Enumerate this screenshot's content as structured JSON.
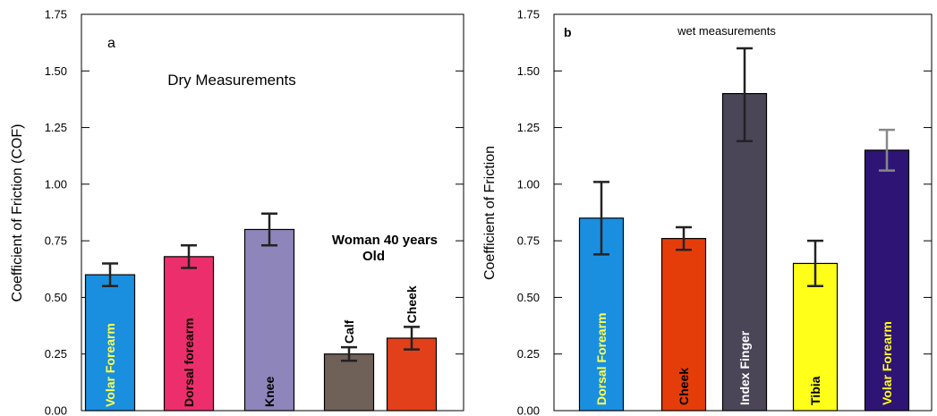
{
  "chart_data": [
    {
      "type": "bar",
      "panel_label": "a",
      "title": "Dry Measurements",
      "annotation": [
        "Woman 40 years",
        "Old"
      ],
      "xlabel": "",
      "ylabel": "Coefficient of Friction (COF)",
      "ylim": [
        0,
        1.75
      ],
      "yticks": [
        "0.00",
        "0.25",
        "0.50",
        "0.75",
        "1.00",
        "1.25",
        "1.50",
        "1.75"
      ],
      "grid": false,
      "categories": [
        "Volar Forearm",
        "Dorsal forearm",
        "Knee",
        "Calf",
        "Cheek"
      ],
      "values": [
        0.6,
        0.68,
        0.8,
        0.25,
        0.32
      ],
      "error_low": [
        0.55,
        0.63,
        0.73,
        0.22,
        0.27
      ],
      "error_high": [
        0.65,
        0.73,
        0.87,
        0.28,
        0.37
      ],
      "colors": [
        "#1a8fe0",
        "#ec2f6c",
        "#8e85ba",
        "#6f6058",
        "#e2401a"
      ],
      "label_colors": [
        "#ffff4d",
        "#000000",
        "#000000",
        "#000000",
        "#000000"
      ],
      "label_inside": [
        true,
        true,
        true,
        false,
        false
      ]
    },
    {
      "type": "bar",
      "panel_label": "b",
      "title": "wet measurements",
      "xlabel": "",
      "ylabel": "Coefficient of Friction",
      "ylim": [
        0,
        1.75
      ],
      "yticks": [
        "0.00",
        "0.25",
        "0.50",
        "0.75",
        "1.00",
        "1.25",
        "1.50",
        "1.75"
      ],
      "grid": false,
      "categories": [
        "Dorsal Forearm",
        "Cheek",
        "Index Finger",
        "Tibia",
        "Volar Forearm"
      ],
      "values": [
        0.85,
        0.76,
        1.4,
        0.65,
        1.15
      ],
      "error_low": [
        0.69,
        0.71,
        1.19,
        0.55,
        1.06
      ],
      "error_high": [
        1.01,
        0.81,
        1.6,
        0.75,
        1.24
      ],
      "colors": [
        "#1a8fe0",
        "#e53d0a",
        "#4a4658",
        "#ffff1a",
        "#2e1575"
      ],
      "label_colors": [
        "#ffff4d",
        "#000000",
        "#ffffff",
        "#000000",
        "#ffff1a"
      ],
      "error_colors": [
        "#222222",
        "#222222",
        "#222222",
        "#222222",
        "#888888"
      ],
      "label_inside": [
        true,
        true,
        true,
        true,
        true
      ]
    }
  ]
}
